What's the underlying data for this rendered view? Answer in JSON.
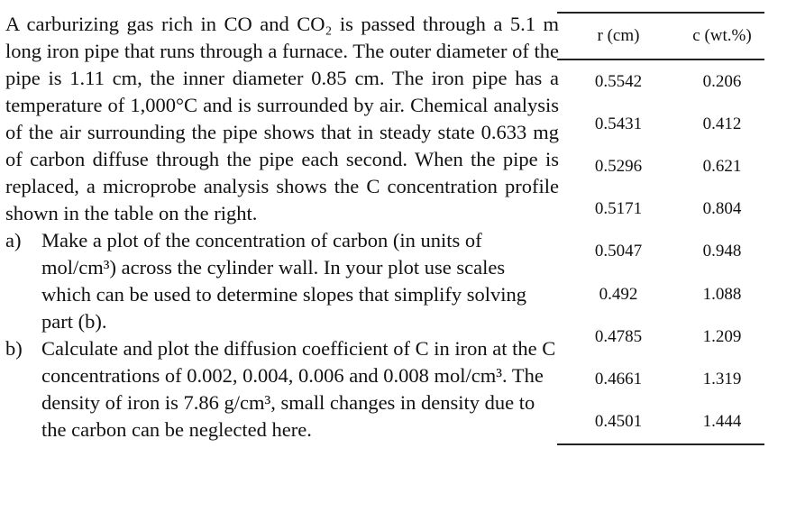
{
  "problem": {
    "intro": "A carburizing gas rich in CO and CO₂ is passed through a 5.1 m long iron pipe that runs through a furnace. The outer diameter of the pipe is 1.11 cm, the inner diameter 0.85 cm. The iron pipe has a temperature of 1,000°C and is surrounded by air. Chemical analysis of the air surrounding the pipe shows that in steady state 0.633 mg of carbon diffuse through the pipe each second. When the pipe is replaced, a microprobe analysis shows the C concentration profile shown in the table on the right.",
    "parts": [
      {
        "label": "a)",
        "text": "Make a plot of the concentration of carbon (in units of mol/cm³) across the cylinder wall. In your plot use scales which can be used to determine slopes that simplify solving part (b)."
      },
      {
        "label": "b)",
        "text": "Calculate and plot the diffusion coefficient of C in iron at the C concentrations of 0.002, 0.004, 0.006 and 0.008 mol/cm³. The density of iron is 7.86 g/cm³, small changes in density due to the carbon can be neglected here."
      }
    ]
  },
  "table": {
    "headers": [
      "r (cm)",
      "c (wt.%)"
    ],
    "rows": [
      [
        "0.5542",
        "0.206"
      ],
      [
        "0.5431",
        "0.412"
      ],
      [
        "0.5296",
        "0.621"
      ],
      [
        "0.5171",
        "0.804"
      ],
      [
        "0.5047",
        "0.948"
      ],
      [
        "0.492",
        "1.088"
      ],
      [
        "0.4785",
        "1.209"
      ],
      [
        "0.4661",
        "1.319"
      ],
      [
        "0.4501",
        "1.444"
      ]
    ]
  }
}
